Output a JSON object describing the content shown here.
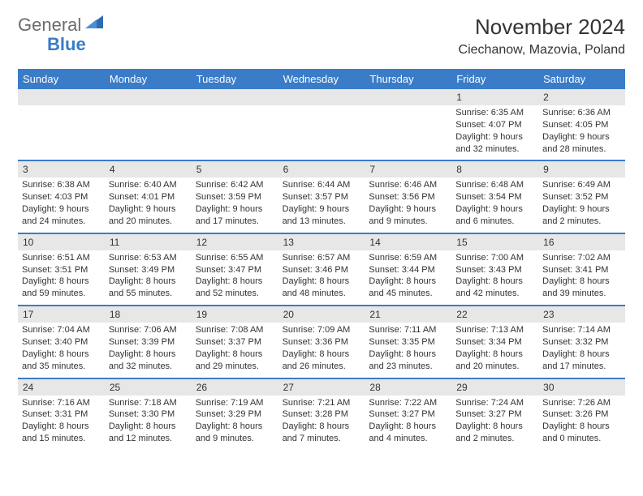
{
  "logo": {
    "text1": "General",
    "text2": "Blue"
  },
  "title": "November 2024",
  "location": "Ciechanow, Mazovia, Poland",
  "colors": {
    "header_bg": "#3a7cc8",
    "header_text": "#ffffff",
    "daynum_bg": "#e7e7e7",
    "sep": "#3a7cc8",
    "body_text": "#333333",
    "logo_gray": "#6c6c6c",
    "logo_blue": "#3a7cc8"
  },
  "daysOfWeek": [
    "Sunday",
    "Monday",
    "Tuesday",
    "Wednesday",
    "Thursday",
    "Friday",
    "Saturday"
  ],
  "weeks": [
    [
      {
        "n": "",
        "lines": []
      },
      {
        "n": "",
        "lines": []
      },
      {
        "n": "",
        "lines": []
      },
      {
        "n": "",
        "lines": []
      },
      {
        "n": "",
        "lines": []
      },
      {
        "n": "1",
        "lines": [
          "Sunrise: 6:35 AM",
          "Sunset: 4:07 PM",
          "Daylight: 9 hours and 32 minutes."
        ]
      },
      {
        "n": "2",
        "lines": [
          "Sunrise: 6:36 AM",
          "Sunset: 4:05 PM",
          "Daylight: 9 hours and 28 minutes."
        ]
      }
    ],
    [
      {
        "n": "3",
        "lines": [
          "Sunrise: 6:38 AM",
          "Sunset: 4:03 PM",
          "Daylight: 9 hours and 24 minutes."
        ]
      },
      {
        "n": "4",
        "lines": [
          "Sunrise: 6:40 AM",
          "Sunset: 4:01 PM",
          "Daylight: 9 hours and 20 minutes."
        ]
      },
      {
        "n": "5",
        "lines": [
          "Sunrise: 6:42 AM",
          "Sunset: 3:59 PM",
          "Daylight: 9 hours and 17 minutes."
        ]
      },
      {
        "n": "6",
        "lines": [
          "Sunrise: 6:44 AM",
          "Sunset: 3:57 PM",
          "Daylight: 9 hours and 13 minutes."
        ]
      },
      {
        "n": "7",
        "lines": [
          "Sunrise: 6:46 AM",
          "Sunset: 3:56 PM",
          "Daylight: 9 hours and 9 minutes."
        ]
      },
      {
        "n": "8",
        "lines": [
          "Sunrise: 6:48 AM",
          "Sunset: 3:54 PM",
          "Daylight: 9 hours and 6 minutes."
        ]
      },
      {
        "n": "9",
        "lines": [
          "Sunrise: 6:49 AM",
          "Sunset: 3:52 PM",
          "Daylight: 9 hours and 2 minutes."
        ]
      }
    ],
    [
      {
        "n": "10",
        "lines": [
          "Sunrise: 6:51 AM",
          "Sunset: 3:51 PM",
          "Daylight: 8 hours and 59 minutes."
        ]
      },
      {
        "n": "11",
        "lines": [
          "Sunrise: 6:53 AM",
          "Sunset: 3:49 PM",
          "Daylight: 8 hours and 55 minutes."
        ]
      },
      {
        "n": "12",
        "lines": [
          "Sunrise: 6:55 AM",
          "Sunset: 3:47 PM",
          "Daylight: 8 hours and 52 minutes."
        ]
      },
      {
        "n": "13",
        "lines": [
          "Sunrise: 6:57 AM",
          "Sunset: 3:46 PM",
          "Daylight: 8 hours and 48 minutes."
        ]
      },
      {
        "n": "14",
        "lines": [
          "Sunrise: 6:59 AM",
          "Sunset: 3:44 PM",
          "Daylight: 8 hours and 45 minutes."
        ]
      },
      {
        "n": "15",
        "lines": [
          "Sunrise: 7:00 AM",
          "Sunset: 3:43 PM",
          "Daylight: 8 hours and 42 minutes."
        ]
      },
      {
        "n": "16",
        "lines": [
          "Sunrise: 7:02 AM",
          "Sunset: 3:41 PM",
          "Daylight: 8 hours and 39 minutes."
        ]
      }
    ],
    [
      {
        "n": "17",
        "lines": [
          "Sunrise: 7:04 AM",
          "Sunset: 3:40 PM",
          "Daylight: 8 hours and 35 minutes."
        ]
      },
      {
        "n": "18",
        "lines": [
          "Sunrise: 7:06 AM",
          "Sunset: 3:39 PM",
          "Daylight: 8 hours and 32 minutes."
        ]
      },
      {
        "n": "19",
        "lines": [
          "Sunrise: 7:08 AM",
          "Sunset: 3:37 PM",
          "Daylight: 8 hours and 29 minutes."
        ]
      },
      {
        "n": "20",
        "lines": [
          "Sunrise: 7:09 AM",
          "Sunset: 3:36 PM",
          "Daylight: 8 hours and 26 minutes."
        ]
      },
      {
        "n": "21",
        "lines": [
          "Sunrise: 7:11 AM",
          "Sunset: 3:35 PM",
          "Daylight: 8 hours and 23 minutes."
        ]
      },
      {
        "n": "22",
        "lines": [
          "Sunrise: 7:13 AM",
          "Sunset: 3:34 PM",
          "Daylight: 8 hours and 20 minutes."
        ]
      },
      {
        "n": "23",
        "lines": [
          "Sunrise: 7:14 AM",
          "Sunset: 3:32 PM",
          "Daylight: 8 hours and 17 minutes."
        ]
      }
    ],
    [
      {
        "n": "24",
        "lines": [
          "Sunrise: 7:16 AM",
          "Sunset: 3:31 PM",
          "Daylight: 8 hours and 15 minutes."
        ]
      },
      {
        "n": "25",
        "lines": [
          "Sunrise: 7:18 AM",
          "Sunset: 3:30 PM",
          "Daylight: 8 hours and 12 minutes."
        ]
      },
      {
        "n": "26",
        "lines": [
          "Sunrise: 7:19 AM",
          "Sunset: 3:29 PM",
          "Daylight: 8 hours and 9 minutes."
        ]
      },
      {
        "n": "27",
        "lines": [
          "Sunrise: 7:21 AM",
          "Sunset: 3:28 PM",
          "Daylight: 8 hours and 7 minutes."
        ]
      },
      {
        "n": "28",
        "lines": [
          "Sunrise: 7:22 AM",
          "Sunset: 3:27 PM",
          "Daylight: 8 hours and 4 minutes."
        ]
      },
      {
        "n": "29",
        "lines": [
          "Sunrise: 7:24 AM",
          "Sunset: 3:27 PM",
          "Daylight: 8 hours and 2 minutes."
        ]
      },
      {
        "n": "30",
        "lines": [
          "Sunrise: 7:26 AM",
          "Sunset: 3:26 PM",
          "Daylight: 8 hours and 0 minutes."
        ]
      }
    ]
  ]
}
